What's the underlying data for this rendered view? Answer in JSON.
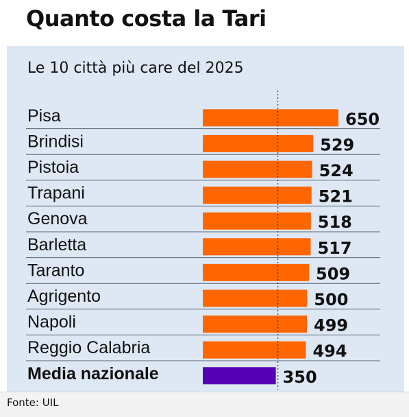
{
  "title": "Quanto costa la Tari",
  "source": "Fonte: UIL",
  "colors": {
    "panel": "#dde8f4",
    "bar": "#ff6600",
    "average_bar": "#5500b3",
    "text": "#111111"
  },
  "chart_data": {
    "type": "bar",
    "orientation": "horizontal",
    "title": "Le 10 città più care del 2025",
    "categories": [
      "Pisa",
      "Brindisi",
      "Pistoia",
      "Trapani",
      "Genova",
      "Barletta",
      "Taranto",
      "Agrigento",
      "Napoli",
      "Reggio Calabria",
      "Media nazionale"
    ],
    "values": [
      650,
      529,
      524,
      521,
      518,
      517,
      509,
      500,
      499,
      494,
      350
    ],
    "highlight": {
      "category": "Media nazionale",
      "color": "#5500b3"
    },
    "reference_line": {
      "value": 350,
      "style": "dotted"
    },
    "xlabel": "",
    "ylabel": "",
    "xlim": [
      0,
      650
    ],
    "grid": false,
    "legend": "none",
    "data_labels": true
  }
}
